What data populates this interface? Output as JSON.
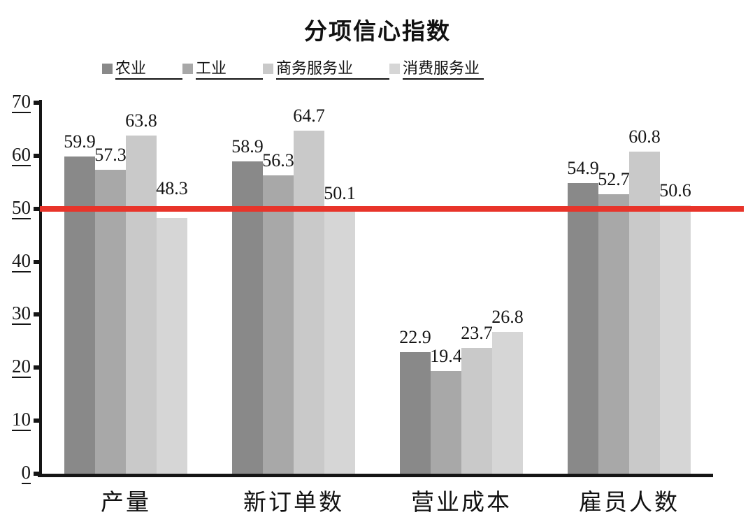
{
  "chart_data": {
    "type": "bar",
    "title": "分项信心指数",
    "categories": [
      "产量",
      "新订单数",
      "营业成本",
      "雇员人数"
    ],
    "series": [
      {
        "name": "农业",
        "color": "#898989",
        "values": [
          59.9,
          58.9,
          22.9,
          54.9
        ]
      },
      {
        "name": "工业",
        "color": "#A8A8A8",
        "values": [
          57.3,
          56.3,
          19.4,
          52.7
        ]
      },
      {
        "name": "商务服务业",
        "color": "#C9C9C9",
        "values": [
          63.8,
          64.7,
          23.7,
          60.8
        ]
      },
      {
        "name": "消费服务业",
        "color": "#D6D6D6",
        "values": [
          48.3,
          50.1,
          26.8,
          50.6
        ]
      }
    ],
    "yticks": [
      0,
      10,
      20,
      30,
      40,
      50,
      60,
      70
    ],
    "ylim": [
      0,
      70
    ],
    "reference_line": {
      "value": 50,
      "color": "#E8342A"
    },
    "legend_position": "top",
    "grid": false,
    "data_labels": true,
    "axis_color": "#151515"
  }
}
